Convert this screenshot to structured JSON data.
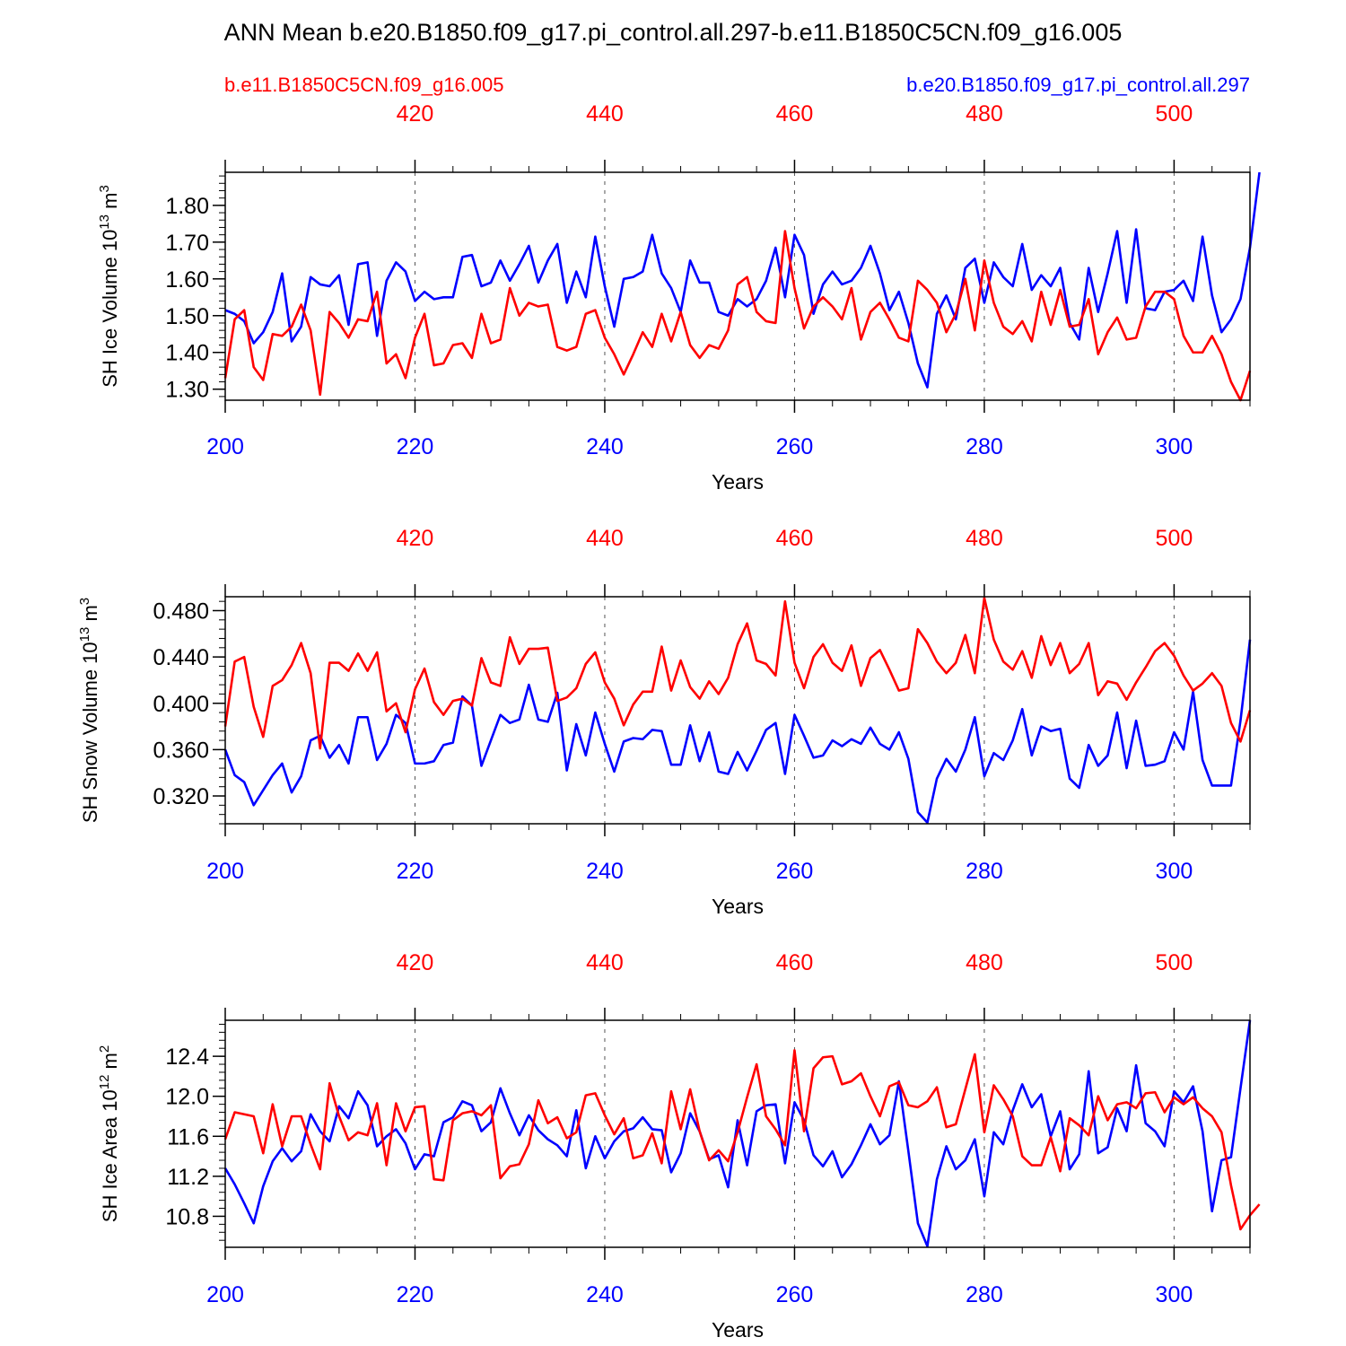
{
  "title": "ANN Mean b.e20.B1850.f09_g17.pi_control.all.297-b.e11.B1850C5CN.f09_g16.005",
  "legend": {
    "left": {
      "text": "b.e11.B1850C5CN.f09_g16.005",
      "color": "#ff0000"
    },
    "right": {
      "text": "b.e20.B1850.f09_g17.pi_control.all.297",
      "color": "#0000ff"
    }
  },
  "colors": {
    "blue": "#0000ff",
    "red": "#ff0000",
    "axis": "#000000",
    "grid": "#555555"
  },
  "chart_data": [
    {
      "type": "line",
      "ylabel": "SH Ice Volume 10",
      "ylabel_exp": "13",
      "ylabel_unit": " m",
      "ylabel_unit_exp": "3",
      "xlabel": "Years",
      "xlim": [
        200,
        308
      ],
      "ylim": [
        1.27,
        1.89
      ],
      "yticks": [
        1.3,
        1.4,
        1.5,
        1.6,
        1.7,
        1.8
      ],
      "ytick_labels": [
        "1.30",
        "1.40",
        "1.50",
        "1.60",
        "1.70",
        "1.80"
      ],
      "yminor_step": 0.02,
      "xticks_bottom": [
        200,
        220,
        240,
        260,
        280,
        300
      ],
      "xtick_labels_bottom": [
        "200",
        "220",
        "240",
        "260",
        "280",
        "300"
      ],
      "xticks_top_labels": [
        "420",
        "440",
        "460",
        "480",
        "500"
      ],
      "grid_x": [
        220,
        240,
        260,
        280,
        300
      ],
      "series": [
        {
          "name": "b.e20.B1850.f09_g17.pi_control.all.297",
          "color": "#0000ff",
          "x_start": 200,
          "values": [
            1.515,
            1.505,
            1.485,
            1.425,
            1.455,
            1.51,
            1.615,
            1.43,
            1.47,
            1.605,
            1.585,
            1.58,
            1.61,
            1.475,
            1.64,
            1.645,
            1.445,
            1.595,
            1.645,
            1.62,
            1.54,
            1.565,
            1.545,
            1.55,
            1.55,
            1.66,
            1.665,
            1.58,
            1.59,
            1.65,
            1.595,
            1.64,
            1.69,
            1.59,
            1.65,
            1.695,
            1.535,
            1.62,
            1.55,
            1.715,
            1.58,
            1.47,
            1.6,
            1.605,
            1.62,
            1.72,
            1.615,
            1.575,
            1.51,
            1.65,
            1.59,
            1.59,
            1.51,
            1.5,
            1.545,
            1.525,
            1.545,
            1.595,
            1.685,
            1.55,
            1.72,
            1.665,
            1.505,
            1.585,
            1.62,
            1.585,
            1.595,
            1.63,
            1.69,
            1.615,
            1.515,
            1.565,
            1.48,
            1.37,
            1.305,
            1.505,
            1.555,
            1.49,
            1.63,
            1.655,
            1.535,
            1.645,
            1.605,
            1.58,
            1.695,
            1.57,
            1.61,
            1.58,
            1.63,
            1.48,
            1.435,
            1.63,
            1.51,
            1.615,
            1.73,
            1.535,
            1.735,
            1.52,
            1.515,
            1.565,
            1.57,
            1.595,
            1.54,
            1.715,
            1.555,
            1.455,
            1.49,
            1.545,
            1.685,
            1.89
          ]
        },
        {
          "name": "b.e11.B1850C5CN.f09_g16.005",
          "color": "#ff0000",
          "x_start": 200,
          "values": [
            1.33,
            1.49,
            1.515,
            1.36,
            1.325,
            1.45,
            1.445,
            1.47,
            1.53,
            1.46,
            1.285,
            1.51,
            1.48,
            1.44,
            1.49,
            1.485,
            1.565,
            1.37,
            1.395,
            1.33,
            1.44,
            1.505,
            1.365,
            1.37,
            1.42,
            1.425,
            1.385,
            1.505,
            1.425,
            1.435,
            1.575,
            1.5,
            1.535,
            1.525,
            1.53,
            1.415,
            1.405,
            1.415,
            1.505,
            1.515,
            1.44,
            1.395,
            1.34,
            1.395,
            1.455,
            1.415,
            1.505,
            1.43,
            1.51,
            1.42,
            1.385,
            1.42,
            1.41,
            1.46,
            1.585,
            1.605,
            1.51,
            1.485,
            1.48,
            1.73,
            1.575,
            1.465,
            1.525,
            1.55,
            1.525,
            1.49,
            1.575,
            1.435,
            1.51,
            1.535,
            1.49,
            1.44,
            1.43,
            1.595,
            1.57,
            1.535,
            1.455,
            1.505,
            1.6,
            1.46,
            1.65,
            1.535,
            1.47,
            1.45,
            1.485,
            1.43,
            1.565,
            1.475,
            1.57,
            1.47,
            1.475,
            1.545,
            1.395,
            1.455,
            1.495,
            1.435,
            1.44,
            1.525,
            1.565,
            1.565,
            1.545,
            1.445,
            1.4,
            1.4,
            1.445,
            1.395,
            1.32,
            1.27,
            1.35
          ]
        }
      ]
    },
    {
      "type": "line",
      "ylabel": "SH Snow Volume 10",
      "ylabel_exp": "13",
      "ylabel_unit": " m",
      "ylabel_unit_exp": "3",
      "xlabel": "Years",
      "xlim": [
        200,
        308
      ],
      "ylim": [
        0.296,
        0.492
      ],
      "yticks": [
        0.32,
        0.36,
        0.4,
        0.44,
        0.48
      ],
      "ytick_labels": [
        "0.320",
        "0.360",
        "0.400",
        "0.440",
        "0.480"
      ],
      "yminor_step": 0.008,
      "xticks_bottom": [
        200,
        220,
        240,
        260,
        280,
        300
      ],
      "xtick_labels_bottom": [
        "200",
        "220",
        "240",
        "260",
        "280",
        "300"
      ],
      "xticks_top_labels": [
        "420",
        "440",
        "460",
        "480",
        "500"
      ],
      "grid_x": [
        220,
        240,
        260,
        280,
        300
      ],
      "series": [
        {
          "name": "b.e20.B1850.f09_g17.pi_control.all.297",
          "color": "#0000ff",
          "x_start": 200,
          "values": [
            0.36,
            0.338,
            0.332,
            0.312,
            0.325,
            0.338,
            0.348,
            0.323,
            0.337,
            0.368,
            0.372,
            0.353,
            0.364,
            0.348,
            0.388,
            0.388,
            0.351,
            0.365,
            0.39,
            0.383,
            0.348,
            0.348,
            0.35,
            0.364,
            0.366,
            0.406,
            0.398,
            0.346,
            0.368,
            0.39,
            0.383,
            0.386,
            0.416,
            0.386,
            0.384,
            0.409,
            0.342,
            0.382,
            0.355,
            0.392,
            0.365,
            0.341,
            0.367,
            0.37,
            0.369,
            0.377,
            0.376,
            0.347,
            0.347,
            0.381,
            0.35,
            0.375,
            0.341,
            0.339,
            0.358,
            0.342,
            0.359,
            0.377,
            0.383,
            0.339,
            0.39,
            0.372,
            0.353,
            0.355,
            0.368,
            0.363,
            0.369,
            0.365,
            0.379,
            0.365,
            0.36,
            0.375,
            0.352,
            0.306,
            0.297,
            0.335,
            0.352,
            0.341,
            0.36,
            0.388,
            0.337,
            0.357,
            0.351,
            0.368,
            0.395,
            0.355,
            0.38,
            0.376,
            0.378,
            0.335,
            0.327,
            0.364,
            0.346,
            0.355,
            0.392,
            0.344,
            0.385,
            0.346,
            0.347,
            0.35,
            0.375,
            0.36,
            0.41,
            0.351,
            0.329,
            0.329,
            0.329,
            0.385,
            0.455
          ]
        },
        {
          "name": "b.e11.B1850C5CN.f09_g16.005",
          "color": "#ff0000",
          "x_start": 200,
          "values": [
            0.38,
            0.436,
            0.44,
            0.397,
            0.371,
            0.415,
            0.42,
            0.433,
            0.452,
            0.426,
            0.361,
            0.435,
            0.435,
            0.428,
            0.443,
            0.428,
            0.444,
            0.393,
            0.4,
            0.375,
            0.412,
            0.43,
            0.401,
            0.39,
            0.402,
            0.404,
            0.398,
            0.439,
            0.418,
            0.415,
            0.457,
            0.434,
            0.447,
            0.447,
            0.448,
            0.402,
            0.405,
            0.413,
            0.434,
            0.444,
            0.418,
            0.404,
            0.381,
            0.399,
            0.41,
            0.41,
            0.449,
            0.411,
            0.437,
            0.414,
            0.404,
            0.419,
            0.408,
            0.422,
            0.451,
            0.469,
            0.437,
            0.434,
            0.424,
            0.488,
            0.435,
            0.413,
            0.44,
            0.451,
            0.435,
            0.428,
            0.45,
            0.415,
            0.439,
            0.446,
            0.429,
            0.411,
            0.413,
            0.464,
            0.452,
            0.436,
            0.426,
            0.435,
            0.459,
            0.426,
            0.491,
            0.455,
            0.436,
            0.429,
            0.445,
            0.422,
            0.458,
            0.433,
            0.452,
            0.426,
            0.434,
            0.452,
            0.407,
            0.419,
            0.417,
            0.403,
            0.418,
            0.431,
            0.445,
            0.452,
            0.441,
            0.424,
            0.411,
            0.417,
            0.426,
            0.415,
            0.383,
            0.367,
            0.394
          ]
        }
      ]
    },
    {
      "type": "line",
      "ylabel": "SH Ice Area 10",
      "ylabel_exp": "12",
      "ylabel_unit": " m",
      "ylabel_unit_exp": "2",
      "xlabel": "Years",
      "xlim": [
        200,
        308
      ],
      "ylim": [
        10.49,
        12.76
      ],
      "yticks": [
        10.8,
        11.2,
        11.6,
        12.0,
        12.4
      ],
      "ytick_labels": [
        "10.8",
        "11.2",
        "11.6",
        "12.0",
        "12.4"
      ],
      "yminor_step": 0.08,
      "xticks_bottom": [
        200,
        220,
        240,
        260,
        280,
        300
      ],
      "xtick_labels_bottom": [
        "200",
        "220",
        "240",
        "260",
        "280",
        "300"
      ],
      "xticks_top_labels": [
        "420",
        "440",
        "460",
        "480",
        "500"
      ],
      "grid_x": [
        220,
        240,
        260,
        280,
        300
      ],
      "series": [
        {
          "name": "b.e20.B1850.f09_g17.pi_control.all.297",
          "color": "#0000ff",
          "x_start": 200,
          "values": [
            11.28,
            11.12,
            10.93,
            10.73,
            11.1,
            11.35,
            11.48,
            11.35,
            11.45,
            11.82,
            11.65,
            11.55,
            11.9,
            11.78,
            12.05,
            11.91,
            11.5,
            11.6,
            11.67,
            11.53,
            11.27,
            11.42,
            11.4,
            11.74,
            11.79,
            11.95,
            11.91,
            11.65,
            11.74,
            12.08,
            11.83,
            11.61,
            11.81,
            11.66,
            11.57,
            11.51,
            11.4,
            11.86,
            11.28,
            11.6,
            11.38,
            11.55,
            11.65,
            11.68,
            11.79,
            11.67,
            11.66,
            11.24,
            11.43,
            11.83,
            11.65,
            11.37,
            11.41,
            11.09,
            11.76,
            11.31,
            11.85,
            11.91,
            11.92,
            11.33,
            11.94,
            11.76,
            11.41,
            11.3,
            11.45,
            11.19,
            11.32,
            11.51,
            11.72,
            11.52,
            11.61,
            12.15,
            11.45,
            10.73,
            10.5,
            11.17,
            11.5,
            11.27,
            11.36,
            11.57,
            11.0,
            11.64,
            11.52,
            11.86,
            12.12,
            11.89,
            12.02,
            11.6,
            11.85,
            11.27,
            11.42,
            12.25,
            11.43,
            11.49,
            11.88,
            11.65,
            12.31,
            11.73,
            11.65,
            11.5,
            12.05,
            11.94,
            12.1,
            11.65,
            10.85,
            11.36,
            11.39,
            12.08,
            12.76
          ]
        },
        {
          "name": "b.e11.B1850C5CN.f09_g16.005",
          "color": "#ff0000",
          "x_start": 200,
          "values": [
            11.57,
            11.84,
            11.82,
            11.8,
            11.43,
            11.92,
            11.5,
            11.8,
            11.8,
            11.52,
            11.27,
            12.13,
            11.8,
            11.56,
            11.64,
            11.61,
            11.93,
            11.31,
            11.93,
            11.65,
            11.89,
            11.9,
            11.17,
            11.16,
            11.76,
            11.83,
            11.85,
            11.81,
            11.91,
            11.18,
            11.3,
            11.32,
            11.52,
            11.96,
            11.73,
            11.79,
            11.58,
            11.64,
            12.01,
            12.03,
            11.81,
            11.62,
            11.78,
            11.38,
            11.41,
            11.63,
            11.33,
            12.05,
            11.67,
            12.07,
            11.65,
            11.36,
            11.46,
            11.35,
            11.64,
            11.99,
            12.32,
            11.8,
            11.67,
            11.51,
            12.46,
            11.65,
            12.28,
            12.39,
            12.4,
            12.12,
            12.15,
            12.23,
            12.0,
            11.8,
            12.1,
            12.14,
            11.91,
            11.89,
            11.95,
            12.09,
            11.69,
            11.72,
            12.07,
            12.42,
            11.64,
            12.11,
            11.97,
            11.8,
            11.4,
            11.31,
            11.31,
            11.59,
            11.25,
            11.78,
            11.71,
            11.61,
            12.0,
            11.76,
            11.92,
            11.94,
            11.88,
            12.03,
            12.04,
            11.84,
            11.99,
            11.92,
            11.99,
            11.88,
            11.8,
            11.64,
            11.11,
            10.67,
            10.81,
            10.92
          ]
        }
      ]
    }
  ]
}
